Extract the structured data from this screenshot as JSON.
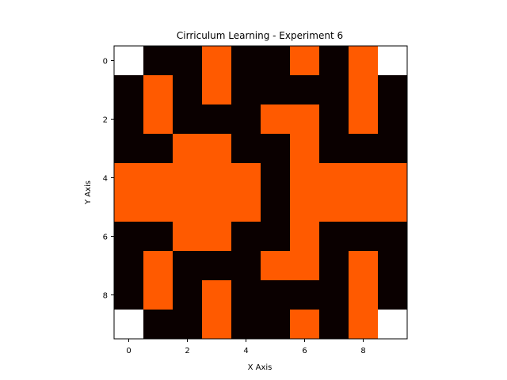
{
  "chart_data": {
    "type": "heatmap",
    "title": "Cirriculum Learning - Experiment 6",
    "xlabel": "X Axis",
    "ylabel": "Y Axis",
    "xlim": [
      -0.5,
      9.5
    ],
    "ylim": [
      9.5,
      -0.5
    ],
    "xticks": [
      0,
      2,
      4,
      6,
      8
    ],
    "yticks": [
      0,
      2,
      4,
      6,
      8
    ],
    "grid": false,
    "legend": "none",
    "colors": {
      "0": "#ffffff",
      "1": "#0a0000",
      "2": "#ff5a00"
    },
    "cell_legend": {
      "0": "empty (white)",
      "1": "wall (black)",
      "2": "path (orange)"
    },
    "matrix": [
      [
        0,
        1,
        1,
        2,
        1,
        1,
        2,
        1,
        2,
        0
      ],
      [
        1,
        2,
        1,
        2,
        1,
        1,
        1,
        1,
        2,
        1
      ],
      [
        1,
        2,
        1,
        1,
        1,
        2,
        2,
        1,
        2,
        1
      ],
      [
        1,
        1,
        2,
        2,
        1,
        1,
        2,
        1,
        1,
        1
      ],
      [
        2,
        2,
        2,
        2,
        2,
        1,
        2,
        2,
        2,
        2
      ],
      [
        2,
        2,
        2,
        2,
        2,
        1,
        2,
        2,
        2,
        2
      ],
      [
        1,
        1,
        2,
        2,
        1,
        1,
        2,
        1,
        1,
        1
      ],
      [
        1,
        2,
        1,
        1,
        1,
        2,
        2,
        1,
        2,
        1
      ],
      [
        1,
        2,
        1,
        2,
        1,
        1,
        1,
        1,
        2,
        1
      ],
      [
        0,
        1,
        1,
        2,
        1,
        1,
        2,
        1,
        2,
        0
      ]
    ]
  }
}
